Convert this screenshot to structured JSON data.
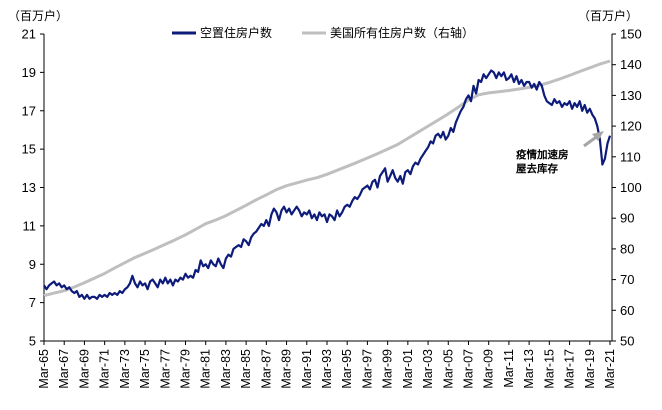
{
  "chart_data": {
    "type": "line",
    "left_axis": {
      "unit_label": "（百万户）",
      "ylim": [
        5,
        21
      ],
      "ticks": [
        5,
        7,
        9,
        11,
        13,
        15,
        17,
        19,
        21
      ]
    },
    "right_axis": {
      "unit_label": "（百万户）",
      "ylim": [
        50,
        150
      ],
      "ticks": [
        50,
        60,
        70,
        80,
        90,
        100,
        110,
        120,
        130,
        140,
        150
      ]
    },
    "x_tick_labels": [
      "Mar-65",
      "Mar-67",
      "Mar-69",
      "Mar-71",
      "Mar-73",
      "Mar-75",
      "Mar-77",
      "Mar-79",
      "Mar-81",
      "Mar-83",
      "Mar-85",
      "Mar-87",
      "Mar-89",
      "Mar-91",
      "Mar-93",
      "Mar-95",
      "Mar-97",
      "Mar-99",
      "Mar-01",
      "Mar-03",
      "Mar-05",
      "Mar-07",
      "Mar-09",
      "Mar-11",
      "Mar-13",
      "Mar-15",
      "Mar-17",
      "Mar-19",
      "Mar-21"
    ],
    "x_range": [
      1965.0,
      2021.2
    ],
    "series": [
      {
        "name": "空置住房户数",
        "axis": "left",
        "color": "#0d1b7a",
        "points": [
          [
            1965.0,
            7.9
          ],
          [
            1965.25,
            7.7
          ],
          [
            1965.5,
            7.9
          ],
          [
            1965.75,
            8.0
          ],
          [
            1966.0,
            8.1
          ],
          [
            1966.25,
            7.9
          ],
          [
            1966.5,
            8.0
          ],
          [
            1966.75,
            7.8
          ],
          [
            1967.0,
            7.9
          ],
          [
            1967.25,
            7.7
          ],
          [
            1967.5,
            7.8
          ],
          [
            1967.75,
            7.6
          ],
          [
            1968.0,
            7.5
          ],
          [
            1968.25,
            7.6
          ],
          [
            1968.5,
            7.3
          ],
          [
            1968.75,
            7.4
          ],
          [
            1969.0,
            7.2
          ],
          [
            1969.25,
            7.4
          ],
          [
            1969.5,
            7.2
          ],
          [
            1969.75,
            7.3
          ],
          [
            1970.0,
            7.3
          ],
          [
            1970.25,
            7.2
          ],
          [
            1970.5,
            7.4
          ],
          [
            1970.75,
            7.3
          ],
          [
            1971.0,
            7.4
          ],
          [
            1971.25,
            7.3
          ],
          [
            1971.5,
            7.5
          ],
          [
            1971.75,
            7.4
          ],
          [
            1972.0,
            7.5
          ],
          [
            1972.25,
            7.4
          ],
          [
            1972.5,
            7.6
          ],
          [
            1972.75,
            7.5
          ],
          [
            1973.0,
            7.7
          ],
          [
            1973.25,
            7.8
          ],
          [
            1973.5,
            8.0
          ],
          [
            1973.75,
            8.4
          ],
          [
            1974.0,
            8.0
          ],
          [
            1974.25,
            7.8
          ],
          [
            1974.5,
            8.1
          ],
          [
            1974.75,
            7.9
          ],
          [
            1975.0,
            8.0
          ],
          [
            1975.25,
            7.7
          ],
          [
            1975.5,
            8.1
          ],
          [
            1975.75,
            8.2
          ],
          [
            1976.0,
            8.0
          ],
          [
            1976.25,
            7.8
          ],
          [
            1976.5,
            8.2
          ],
          [
            1976.75,
            8.0
          ],
          [
            1977.0,
            8.3
          ],
          [
            1977.25,
            8.0
          ],
          [
            1977.5,
            8.2
          ],
          [
            1977.75,
            7.9
          ],
          [
            1978.0,
            8.2
          ],
          [
            1978.25,
            8.1
          ],
          [
            1978.5,
            8.3
          ],
          [
            1978.75,
            8.2
          ],
          [
            1979.0,
            8.5
          ],
          [
            1979.25,
            8.3
          ],
          [
            1979.5,
            8.4
          ],
          [
            1979.75,
            8.3
          ],
          [
            1980.0,
            8.7
          ],
          [
            1980.25,
            8.6
          ],
          [
            1980.5,
            9.2
          ],
          [
            1980.75,
            8.9
          ],
          [
            1981.0,
            9.0
          ],
          [
            1981.25,
            8.8
          ],
          [
            1981.5,
            9.2
          ],
          [
            1981.75,
            9.0
          ],
          [
            1982.0,
            8.9
          ],
          [
            1982.25,
            9.3
          ],
          [
            1982.5,
            9.0
          ],
          [
            1982.75,
            8.8
          ],
          [
            1983.0,
            9.3
          ],
          [
            1983.25,
            9.5
          ],
          [
            1983.5,
            9.4
          ],
          [
            1983.75,
            9.8
          ],
          [
            1984.0,
            9.9
          ],
          [
            1984.25,
            10.0
          ],
          [
            1984.5,
            9.9
          ],
          [
            1984.75,
            10.3
          ],
          [
            1985.0,
            10.2
          ],
          [
            1985.25,
            10.0
          ],
          [
            1985.5,
            10.4
          ],
          [
            1985.75,
            10.6
          ],
          [
            1986.0,
            10.7
          ],
          [
            1986.25,
            10.9
          ],
          [
            1986.5,
            11.1
          ],
          [
            1986.75,
            11.0
          ],
          [
            1987.0,
            11.3
          ],
          [
            1987.25,
            11.0
          ],
          [
            1987.5,
            11.6
          ],
          [
            1987.75,
            11.9
          ],
          [
            1988.0,
            11.7
          ],
          [
            1988.25,
            11.3
          ],
          [
            1988.5,
            11.8
          ],
          [
            1988.75,
            12.0
          ],
          [
            1989.0,
            11.7
          ],
          [
            1989.25,
            11.9
          ],
          [
            1989.5,
            11.6
          ],
          [
            1989.75,
            11.8
          ],
          [
            1990.0,
            12.0
          ],
          [
            1990.25,
            11.8
          ],
          [
            1990.5,
            11.5
          ],
          [
            1990.75,
            11.7
          ],
          [
            1991.0,
            11.6
          ],
          [
            1991.25,
            11.8
          ],
          [
            1991.5,
            11.4
          ],
          [
            1991.75,
            11.6
          ],
          [
            1992.0,
            11.3
          ],
          [
            1992.25,
            11.7
          ],
          [
            1992.5,
            11.5
          ],
          [
            1992.75,
            11.6
          ],
          [
            1993.0,
            11.2
          ],
          [
            1993.25,
            11.6
          ],
          [
            1993.5,
            11.5
          ],
          [
            1993.75,
            11.3
          ],
          [
            1994.0,
            11.8
          ],
          [
            1994.25,
            11.5
          ],
          [
            1994.5,
            11.7
          ],
          [
            1994.75,
            12.0
          ],
          [
            1995.0,
            12.1
          ],
          [
            1995.25,
            12.0
          ],
          [
            1995.5,
            12.3
          ],
          [
            1995.75,
            12.5
          ],
          [
            1996.0,
            12.4
          ],
          [
            1996.25,
            12.6
          ],
          [
            1996.5,
            12.9
          ],
          [
            1996.75,
            13.0
          ],
          [
            1997.0,
            13.1
          ],
          [
            1997.25,
            12.9
          ],
          [
            1997.5,
            13.3
          ],
          [
            1997.75,
            13.4
          ],
          [
            1998.0,
            13.0
          ],
          [
            1998.25,
            13.6
          ],
          [
            1998.5,
            13.8
          ],
          [
            1998.75,
            14.0
          ],
          [
            1999.0,
            13.3
          ],
          [
            1999.25,
            13.6
          ],
          [
            1999.5,
            13.9
          ],
          [
            1999.75,
            13.5
          ],
          [
            2000.0,
            13.3
          ],
          [
            2000.25,
            13.6
          ],
          [
            2000.5,
            13.2
          ],
          [
            2000.75,
            13.8
          ],
          [
            2001.0,
            13.9
          ],
          [
            2001.25,
            13.7
          ],
          [
            2001.5,
            14.1
          ],
          [
            2001.75,
            14.3
          ],
          [
            2002.0,
            14.2
          ],
          [
            2002.25,
            14.5
          ],
          [
            2002.5,
            14.7
          ],
          [
            2002.75,
            14.9
          ],
          [
            2003.0,
            15.1
          ],
          [
            2003.25,
            15.4
          ],
          [
            2003.5,
            15.3
          ],
          [
            2003.75,
            15.7
          ],
          [
            2004.0,
            15.8
          ],
          [
            2004.25,
            15.6
          ],
          [
            2004.5,
            15.9
          ],
          [
            2004.75,
            15.5
          ],
          [
            2005.0,
            15.7
          ],
          [
            2005.25,
            16.1
          ],
          [
            2005.5,
            15.9
          ],
          [
            2005.75,
            16.4
          ],
          [
            2006.0,
            16.7
          ],
          [
            2006.25,
            17.0
          ],
          [
            2006.5,
            17.2
          ],
          [
            2006.75,
            17.6
          ],
          [
            2007.0,
            17.8
          ],
          [
            2007.25,
            17.5
          ],
          [
            2007.5,
            18.3
          ],
          [
            2007.75,
            17.9
          ],
          [
            2008.0,
            18.6
          ],
          [
            2008.25,
            18.5
          ],
          [
            2008.5,
            18.9
          ],
          [
            2008.75,
            18.7
          ],
          [
            2009.0,
            18.9
          ],
          [
            2009.25,
            19.1
          ],
          [
            2009.5,
            19.0
          ],
          [
            2009.75,
            18.7
          ],
          [
            2010.0,
            19.0
          ],
          [
            2010.25,
            18.8
          ],
          [
            2010.5,
            19.0
          ],
          [
            2010.75,
            18.6
          ],
          [
            2011.0,
            18.7
          ],
          [
            2011.25,
            18.9
          ],
          [
            2011.5,
            18.5
          ],
          [
            2011.75,
            18.8
          ],
          [
            2012.0,
            18.4
          ],
          [
            2012.25,
            18.6
          ],
          [
            2012.5,
            18.3
          ],
          [
            2012.75,
            18.5
          ],
          [
            2013.0,
            18.5
          ],
          [
            2013.25,
            18.2
          ],
          [
            2013.5,
            18.4
          ],
          [
            2013.75,
            18.1
          ],
          [
            2014.0,
            18.5
          ],
          [
            2014.25,
            18.3
          ],
          [
            2014.5,
            17.8
          ],
          [
            2014.75,
            17.5
          ],
          [
            2015.0,
            17.4
          ],
          [
            2015.25,
            17.3
          ],
          [
            2015.5,
            17.6
          ],
          [
            2015.75,
            17.4
          ],
          [
            2016.0,
            17.5
          ],
          [
            2016.25,
            17.2
          ],
          [
            2016.5,
            17.4
          ],
          [
            2016.75,
            17.3
          ],
          [
            2017.0,
            17.5
          ],
          [
            2017.25,
            17.1
          ],
          [
            2017.5,
            17.4
          ],
          [
            2017.75,
            17.2
          ],
          [
            2018.0,
            17.5
          ],
          [
            2018.25,
            17.0
          ],
          [
            2018.5,
            17.3
          ],
          [
            2018.75,
            16.9
          ],
          [
            2019.0,
            17.1
          ],
          [
            2019.25,
            16.8
          ],
          [
            2019.5,
            16.6
          ],
          [
            2019.75,
            16.2
          ],
          [
            2020.0,
            15.5
          ],
          [
            2020.25,
            14.2
          ],
          [
            2020.5,
            14.5
          ],
          [
            2020.75,
            15.3
          ],
          [
            2021.0,
            15.7
          ]
        ]
      },
      {
        "name": "美国所有住房户数（右轴）",
        "axis": "right",
        "color": "#bfbfbf",
        "points": [
          [
            1965.0,
            64.8
          ],
          [
            1966.0,
            65.6
          ],
          [
            1967.0,
            66.4
          ],
          [
            1968.0,
            67.6
          ],
          [
            1969.0,
            69.0
          ],
          [
            1970.0,
            70.5
          ],
          [
            1971.0,
            72.0
          ],
          [
            1972.0,
            73.8
          ],
          [
            1973.0,
            75.5
          ],
          [
            1974.0,
            77.2
          ],
          [
            1975.0,
            78.6
          ],
          [
            1976.0,
            80.0
          ],
          [
            1977.0,
            81.5
          ],
          [
            1978.0,
            83.0
          ],
          [
            1979.0,
            84.6
          ],
          [
            1980.0,
            86.4
          ],
          [
            1981.0,
            88.2
          ],
          [
            1982.0,
            89.4
          ],
          [
            1983.0,
            90.8
          ],
          [
            1984.0,
            92.5
          ],
          [
            1985.0,
            94.2
          ],
          [
            1986.0,
            96.0
          ],
          [
            1987.0,
            97.6
          ],
          [
            1988.0,
            99.3
          ],
          [
            1989.0,
            100.6
          ],
          [
            1990.0,
            101.5
          ],
          [
            1991.0,
            102.4
          ],
          [
            1992.0,
            103.2
          ],
          [
            1993.0,
            104.3
          ],
          [
            1994.0,
            105.6
          ],
          [
            1995.0,
            106.9
          ],
          [
            1996.0,
            108.2
          ],
          [
            1997.0,
            109.6
          ],
          [
            1998.0,
            111.0
          ],
          [
            1999.0,
            112.5
          ],
          [
            2000.0,
            114.0
          ],
          [
            2001.0,
            116.0
          ],
          [
            2002.0,
            118.0
          ],
          [
            2003.0,
            120.0
          ],
          [
            2004.0,
            122.0
          ],
          [
            2005.0,
            124.0
          ],
          [
            2006.0,
            126.2
          ],
          [
            2007.0,
            128.5
          ],
          [
            2008.0,
            130.2
          ],
          [
            2009.0,
            130.8
          ],
          [
            2010.0,
            131.2
          ],
          [
            2011.0,
            131.6
          ],
          [
            2012.0,
            132.1
          ],
          [
            2013.0,
            132.6
          ],
          [
            2014.0,
            133.3
          ],
          [
            2015.0,
            134.2
          ],
          [
            2016.0,
            135.3
          ],
          [
            2017.0,
            136.5
          ],
          [
            2018.0,
            137.8
          ],
          [
            2019.0,
            139.0
          ],
          [
            2020.0,
            140.2
          ],
          [
            2021.0,
            141.2
          ]
        ]
      }
    ],
    "annotation": {
      "lines": [
        "疫情加速房",
        "屋去库存"
      ],
      "arrow": true
    }
  }
}
